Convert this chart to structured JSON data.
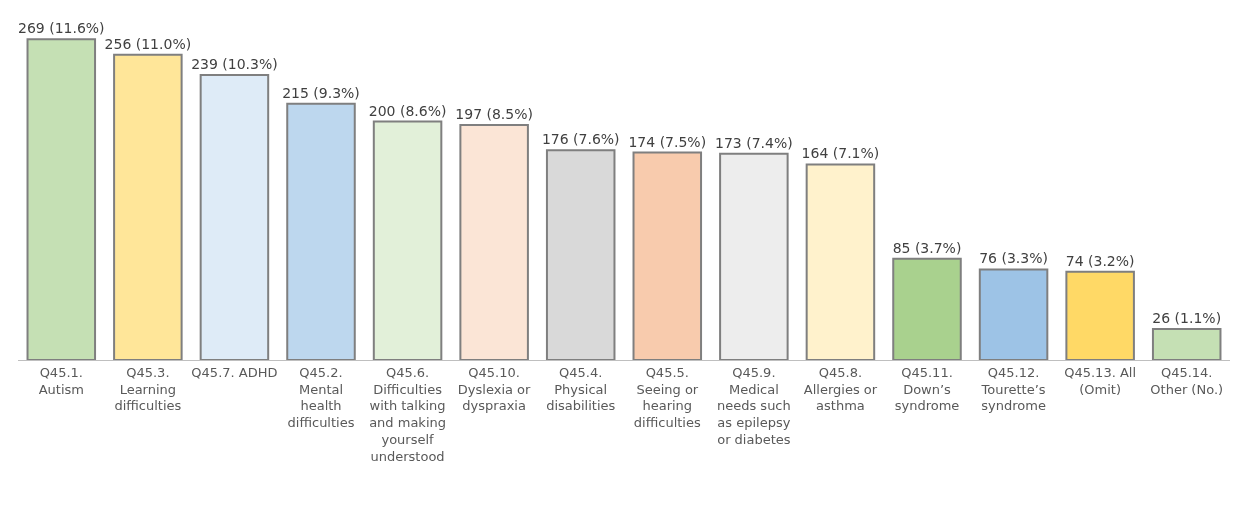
{
  "chart_data": {
    "type": "bar",
    "categories": [
      "Q45.1. Autism",
      "Q45.3. Learning difficulties",
      "Q45.7. ADHD",
      "Q45.2. Mental health difficulties",
      "Q45.6. Difficulties with talking and making yourself understood",
      "Q45.10. Dyslexia or dyspraxia",
      "Q45.4. Physical disabilities",
      "Q45.5. Seeing or hearing difficulties",
      "Q45.9. Medical needs such as epilepsy or diabetes",
      "Q45.8. Allergies or asthma",
      "Q45.11. Down’s syndrome",
      "Q45.12. Tourette’s syndrome",
      "Q45.13. All (Omit)",
      "Q45.14. Other (No.)"
    ],
    "values": [
      269,
      256,
      239,
      215,
      200,
      197,
      176,
      174,
      173,
      164,
      85,
      76,
      74,
      26
    ],
    "value_labels": [
      "269 (11.6%)",
      "256 (11.0%)",
      "239 (10.3%)",
      "215 (9.3%)",
      "200 (8.6%)",
      "197 (8.5%)",
      "176 (7.6%)",
      "174 (7.5%)",
      "173 (7.4%)",
      "164 (7.1%)",
      "85 (3.7%)",
      "76 (3.3%)",
      "74 (3.2%)",
      "26 (1.1%)"
    ],
    "colors": [
      "#c5e0b4",
      "#ffe699",
      "#deebf7",
      "#bdd7ee",
      "#e2f0d9",
      "#fbe5d6",
      "#d9d9d9",
      "#f8cbad",
      "#ededed",
      "#fff2cc",
      "#a9d18e",
      "#9dc3e6",
      "#ffd966",
      "#c5e0b4"
    ],
    "legend": false
  }
}
